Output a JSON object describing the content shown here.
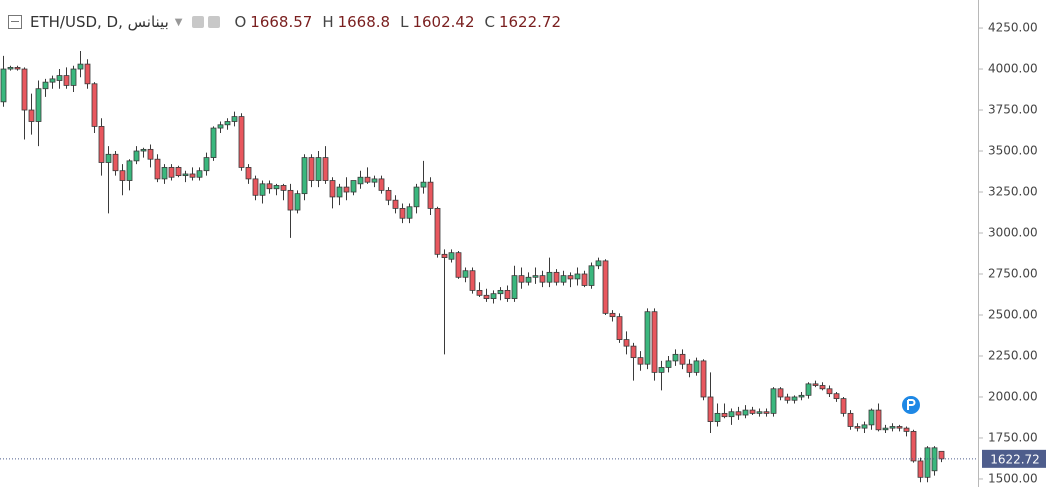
{
  "chart_data": {
    "type": "candlestick",
    "title": "ETH/USD, D, بينانس",
    "ohlc_labels": [
      "O",
      "H",
      "L",
      "C"
    ],
    "up_color": "#3bb77e",
    "down_color": "#e8575e",
    "ylim": [
      1451,
      4421
    ],
    "yticks": [
      {
        "value": 1500,
        "label": "1500.00"
      },
      {
        "value": 1750,
        "label": "1750.00"
      },
      {
        "value": 2000,
        "label": "2000.00"
      },
      {
        "value": 2250,
        "label": "2250.00"
      },
      {
        "value": 2500,
        "label": "2500.00"
      },
      {
        "value": 2750,
        "label": "2750.00"
      },
      {
        "value": 3000,
        "label": "3000.00"
      },
      {
        "value": 3250,
        "label": "3250.00"
      },
      {
        "value": 3500,
        "label": "3500.00"
      },
      {
        "value": 3750,
        "label": "3750.00"
      },
      {
        "value": 4000,
        "label": "4000.00"
      },
      {
        "value": 4250,
        "label": "4250.00"
      }
    ],
    "candles": [
      [
        3800,
        4080,
        3770,
        4000
      ],
      [
        4000,
        4020,
        3990,
        4010
      ],
      [
        4010,
        4020,
        3990,
        4000
      ],
      [
        4000,
        4010,
        3570,
        3750
      ],
      [
        3750,
        3850,
        3600,
        3680
      ],
      [
        3680,
        3930,
        3530,
        3880
      ],
      [
        3880,
        3940,
        3830,
        3920
      ],
      [
        3920,
        3960,
        3880,
        3940
      ],
      [
        3930,
        4000,
        3880,
        3960
      ],
      [
        3960,
        4010,
        3880,
        3900
      ],
      [
        3900,
        4020,
        3860,
        4000
      ],
      [
        4000,
        4110,
        3950,
        4030
      ],
      [
        4030,
        4060,
        3880,
        3910
      ],
      [
        3910,
        3920,
        3610,
        3650
      ],
      [
        3650,
        3700,
        3350,
        3430
      ],
      [
        3430,
        3530,
        3120,
        3480
      ],
      [
        3480,
        3500,
        3350,
        3380
      ],
      [
        3380,
        3420,
        3230,
        3320
      ],
      [
        3320,
        3450,
        3260,
        3440
      ],
      [
        3440,
        3530,
        3420,
        3500
      ],
      [
        3500,
        3520,
        3460,
        3510
      ],
      [
        3510,
        3540,
        3400,
        3450
      ],
      [
        3450,
        3480,
        3310,
        3330
      ],
      [
        3330,
        3420,
        3300,
        3400
      ],
      [
        3400,
        3420,
        3320,
        3340
      ],
      [
        3400,
        3410,
        3340,
        3350
      ],
      [
        3350,
        3380,
        3310,
        3360
      ],
      [
        3360,
        3400,
        3320,
        3340
      ],
      [
        3340,
        3400,
        3320,
        3380
      ],
      [
        3380,
        3490,
        3350,
        3460
      ],
      [
        3460,
        3650,
        3440,
        3640
      ],
      [
        3640,
        3680,
        3610,
        3660
      ],
      [
        3660,
        3700,
        3630,
        3680
      ],
      [
        3680,
        3740,
        3650,
        3710
      ],
      [
        3710,
        3730,
        3380,
        3400
      ],
      [
        3400,
        3420,
        3300,
        3330
      ],
      [
        3330,
        3350,
        3200,
        3230
      ],
      [
        3230,
        3320,
        3180,
        3300
      ],
      [
        3300,
        3320,
        3240,
        3270
      ],
      [
        3270,
        3300,
        3230,
        3290
      ],
      [
        3290,
        3300,
        3200,
        3260
      ],
      [
        3260,
        3300,
        2970,
        3140
      ],
      [
        3140,
        3260,
        3120,
        3240
      ],
      [
        3240,
        3480,
        3200,
        3460
      ],
      [
        3460,
        3480,
        3280,
        3320
      ],
      [
        3320,
        3500,
        3280,
        3460
      ],
      [
        3460,
        3530,
        3300,
        3320
      ],
      [
        3320,
        3340,
        3150,
        3220
      ],
      [
        3220,
        3300,
        3170,
        3280
      ],
      [
        3280,
        3340,
        3200,
        3250
      ],
      [
        3250,
        3320,
        3230,
        3320
      ],
      [
        3300,
        3380,
        3270,
        3340
      ],
      [
        3340,
        3400,
        3300,
        3310
      ],
      [
        3310,
        3350,
        3280,
        3330
      ],
      [
        3330,
        3350,
        3240,
        3260
      ],
      [
        3260,
        3280,
        3170,
        3200
      ],
      [
        3200,
        3230,
        3120,
        3150
      ],
      [
        3150,
        3180,
        3060,
        3090
      ],
      [
        3090,
        3180,
        3060,
        3160
      ],
      [
        3160,
        3300,
        3120,
        3280
      ],
      [
        3280,
        3440,
        3240,
        3310
      ],
      [
        3310,
        3340,
        3110,
        3150
      ],
      [
        3150,
        3160,
        2850,
        2870
      ],
      [
        2870,
        2900,
        2260,
        2850
      ],
      [
        2840,
        2900,
        2820,
        2880
      ],
      [
        2880,
        2890,
        2720,
        2730
      ],
      [
        2730,
        2790,
        2700,
        2770
      ],
      [
        2770,
        2790,
        2630,
        2650
      ],
      [
        2650,
        2700,
        2610,
        2620
      ],
      [
        2620,
        2660,
        2580,
        2600
      ],
      [
        2600,
        2650,
        2570,
        2630
      ],
      [
        2630,
        2670,
        2590,
        2650
      ],
      [
        2650,
        2680,
        2580,
        2600
      ],
      [
        2600,
        2800,
        2580,
        2740
      ],
      [
        2740,
        2790,
        2660,
        2700
      ],
      [
        2700,
        2760,
        2680,
        2730
      ],
      [
        2730,
        2790,
        2690,
        2740
      ],
      [
        2740,
        2770,
        2670,
        2700
      ],
      [
        2700,
        2850,
        2670,
        2760
      ],
      [
        2760,
        2780,
        2680,
        2700
      ],
      [
        2700,
        2770,
        2680,
        2740
      ],
      [
        2740,
        2760,
        2670,
        2720
      ],
      [
        2720,
        2790,
        2680,
        2750
      ],
      [
        2750,
        2770,
        2670,
        2680
      ],
      [
        2680,
        2820,
        2660,
        2800
      ],
      [
        2800,
        2850,
        2780,
        2830
      ],
      [
        2830,
        2840,
        2500,
        2510
      ],
      [
        2510,
        2530,
        2460,
        2490
      ],
      [
        2490,
        2510,
        2330,
        2350
      ],
      [
        2350,
        2400,
        2260,
        2310
      ],
      [
        2310,
        2330,
        2100,
        2240
      ],
      [
        2240,
        2280,
        2160,
        2200
      ],
      [
        2200,
        2540,
        2170,
        2520
      ],
      [
        2520,
        2540,
        2100,
        2150
      ],
      [
        2150,
        2220,
        2040,
        2180
      ],
      [
        2180,
        2250,
        2150,
        2220
      ],
      [
        2220,
        2290,
        2190,
        2260
      ],
      [
        2260,
        2290,
        2170,
        2200
      ],
      [
        2200,
        2230,
        2120,
        2150
      ],
      [
        2150,
        2240,
        2130,
        2220
      ],
      [
        2220,
        2230,
        1980,
        2000
      ],
      [
        2000,
        2150,
        1780,
        1850
      ],
      [
        1850,
        1960,
        1820,
        1900
      ],
      [
        1900,
        1960,
        1870,
        1880
      ],
      [
        1880,
        1930,
        1830,
        1910
      ],
      [
        1910,
        1940,
        1860,
        1890
      ],
      [
        1890,
        1950,
        1870,
        1920
      ],
      [
        1920,
        1940,
        1890,
        1900
      ],
      [
        1900,
        1930,
        1880,
        1910
      ],
      [
        1910,
        1930,
        1880,
        1900
      ],
      [
        1900,
        2060,
        1880,
        2050
      ],
      [
        2050,
        2060,
        1980,
        2000
      ],
      [
        2000,
        2020,
        1960,
        1980
      ],
      [
        1980,
        2010,
        1960,
        2000
      ],
      [
        2000,
        2030,
        1980,
        2010
      ],
      [
        2010,
        2090,
        1990,
        2080
      ],
      [
        2080,
        2100,
        2060,
        2070
      ],
      [
        2070,
        2090,
        2040,
        2050
      ],
      [
        2050,
        2070,
        2000,
        2020
      ],
      [
        2020,
        2030,
        1970,
        1990
      ],
      [
        1990,
        2000,
        1880,
        1900
      ],
      [
        1900,
        1920,
        1800,
        1820
      ],
      [
        1820,
        1840,
        1790,
        1810
      ],
      [
        1810,
        1850,
        1780,
        1830
      ],
      [
        1830,
        1930,
        1800,
        1920
      ],
      [
        1920,
        1960,
        1790,
        1800
      ],
      [
        1800,
        1830,
        1780,
        1810
      ],
      [
        1810,
        1840,
        1790,
        1820
      ],
      [
        1820,
        1830,
        1790,
        1810
      ],
      [
        1810,
        1820,
        1760,
        1790
      ],
      [
        1790,
        1800,
        1600,
        1610
      ],
      [
        1610,
        1630,
        1480,
        1510
      ],
      [
        1510,
        1700,
        1480,
        1690
      ],
      [
        1550,
        1700,
        1520,
        1690
      ],
      [
        1668.57,
        1668.8,
        1602.42,
        1622.72
      ]
    ]
  }
}
